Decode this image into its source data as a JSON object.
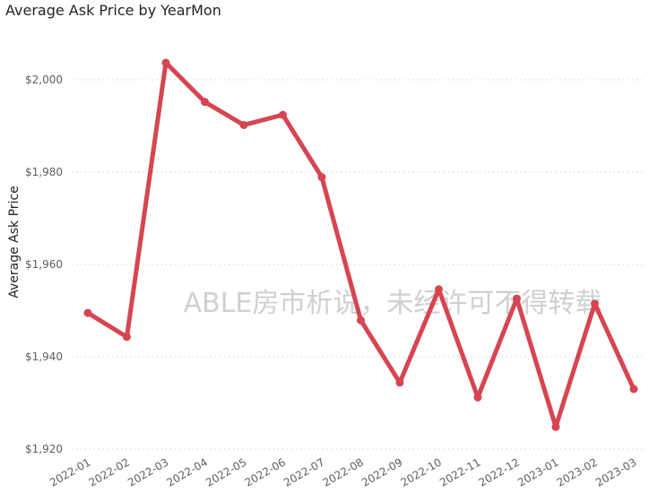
{
  "chart_data": {
    "type": "line",
    "title": "Average Ask Price by YearMon",
    "xlabel": "",
    "ylabel": "Average Ask Price",
    "categories": [
      "2022-01",
      "2022-02",
      "2022-03",
      "2022-04",
      "2022-05",
      "2022-06",
      "2022-07",
      "2022-08",
      "2022-09",
      "2022-10",
      "2022-11",
      "2022-12",
      "2023-01",
      "2023-02",
      "2023-03"
    ],
    "values": [
      1949.5,
      1944.3,
      2003.7,
      1995.2,
      1990.2,
      1992.4,
      1978.9,
      1947.9,
      1934.4,
      1954.6,
      1931.2,
      1952.6,
      1924.8,
      1951.5,
      1933.0
    ],
    "ylim": [
      1920,
      2000
    ],
    "yticks": [
      1920,
      1940,
      1960,
      1980,
      2000
    ],
    "ytick_labels": [
      "$1,920",
      "$1,940",
      "$1,960",
      "$1,980",
      "$2,000"
    ],
    "grid": true,
    "legend": "none",
    "color": "#d64550",
    "watermark": "ABLE房市析说，未经许可不得转载"
  }
}
